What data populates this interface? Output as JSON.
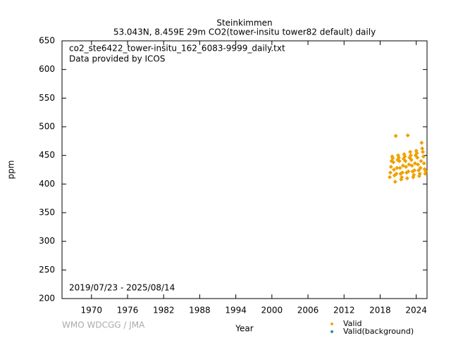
{
  "chart_data": {
    "type": "scatter",
    "title": "Steinkimmen",
    "subtitle": "53.043N, 8.459E 29m    CO2(tower-insitu tower82 default) daily",
    "annotations": [
      "co2_ste6422_tower-insitu_162_6083-9999_daily.txt",
      "Data provided by ICOS",
      "2019/07/23 - 2025/08/14"
    ],
    "credit": "WMO WDCGG / JMA",
    "xlabel": "Year",
    "ylabel": "ppm",
    "xlim": [
      1965.1,
      2025.8
    ],
    "ylim": [
      200,
      650
    ],
    "xticks": [
      1970,
      1976,
      1982,
      1988,
      1994,
      2000,
      2006,
      2012,
      2018,
      2024
    ],
    "yticks": [
      200,
      250,
      300,
      350,
      400,
      450,
      500,
      550,
      600,
      650
    ],
    "legend": "bottom-right",
    "series": [
      {
        "name": "Valid",
        "color": "#f0a000",
        "x": [
          2019.6,
          2019.7,
          2019.8,
          2019.9,
          2020.0,
          2020.1,
          2020.2,
          2020.3,
          2020.4,
          2020.5,
          2020.6,
          2020.7,
          2020.8,
          2020.9,
          2021.0,
          2021.1,
          2021.2,
          2021.3,
          2021.4,
          2021.5,
          2021.6,
          2021.7,
          2021.8,
          2021.9,
          2022.0,
          2022.1,
          2022.2,
          2022.3,
          2022.4,
          2022.5,
          2022.6,
          2022.7,
          2022.8,
          2022.9,
          2023.0,
          2023.1,
          2023.2,
          2023.3,
          2023.4,
          2023.5,
          2023.6,
          2023.7,
          2023.8,
          2023.9,
          2024.0,
          2024.1,
          2024.2,
          2024.3,
          2024.4,
          2024.5,
          2024.6,
          2024.7,
          2024.8,
          2024.9,
          2025.0,
          2025.1,
          2025.2,
          2025.3,
          2025.4,
          2025.5,
          2025.6
        ],
        "values": [
          412,
          420,
          430,
          440,
          448,
          445,
          438,
          425,
          415,
          404,
          484,
          418,
          428,
          442,
          450,
          446,
          440,
          428,
          418,
          408,
          412,
          420,
          432,
          444,
          452,
          448,
          440,
          430,
          420,
          410,
          485,
          422,
          434,
          446,
          456,
          450,
          442,
          432,
          422,
          412,
          416,
          424,
          436,
          450,
          458,
          454,
          446,
          434,
          424,
          414,
          418,
          428,
          440,
          472,
          462,
          456,
          448,
          436,
          426,
          418,
          422
        ]
      },
      {
        "name": "Valid(background)",
        "color": "#2a8a7a",
        "x": [],
        "values": []
      }
    ]
  }
}
